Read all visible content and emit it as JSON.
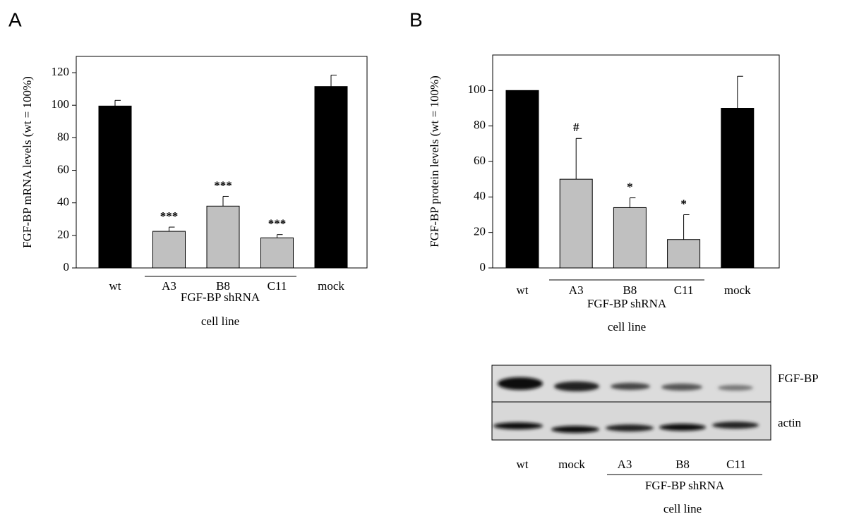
{
  "chart_data": [
    {
      "type": "bar",
      "label": "A",
      "ylabel": "FGF-BP mRNA levels (wt = 100%)",
      "xlabel": "cell line",
      "group_label": "FGF-BP shRNA",
      "categories": [
        "wt",
        "A3",
        "B8",
        "C11",
        "mock"
      ],
      "values": [
        99.5,
        22.5,
        38,
        18.5,
        111.5
      ],
      "errors": [
        3.5,
        2.6,
        6,
        2,
        7
      ],
      "colors": [
        "#000000",
        "#c0c0c0",
        "#c0c0c0",
        "#c0c0c0",
        "#000000"
      ],
      "annotations": [
        null,
        "***",
        "***",
        "***",
        null
      ],
      "ylim": [
        0,
        130
      ],
      "yticks": [
        0,
        20,
        40,
        60,
        80,
        100,
        120
      ]
    },
    {
      "type": "bar",
      "label": "B",
      "ylabel": "FGF-BP protein levels (wt = 100%)",
      "xlabel": "cell line",
      "group_label": "FGF-BP shRNA",
      "categories": [
        "wt",
        "A3",
        "B8",
        "C11",
        "mock"
      ],
      "values": [
        100,
        50,
        34,
        16,
        90
      ],
      "errors": [
        0,
        23,
        5.5,
        14,
        18
      ],
      "colors": [
        "#000000",
        "#c0c0c0",
        "#c0c0c0",
        "#c0c0c0",
        "#000000"
      ],
      "annotations": [
        null,
        "#",
        "*",
        "*",
        null
      ],
      "ylim": [
        0,
        120
      ],
      "yticks": [
        0,
        20,
        40,
        60,
        80,
        100
      ]
    }
  ],
  "blot": {
    "rows": [
      "FGF-BP",
      "actin"
    ],
    "lanes": [
      "wt",
      "mock",
      "A3",
      "B8",
      "C11"
    ],
    "group_label": "FGF-BP shRNA",
    "xlabel": "cell line"
  }
}
